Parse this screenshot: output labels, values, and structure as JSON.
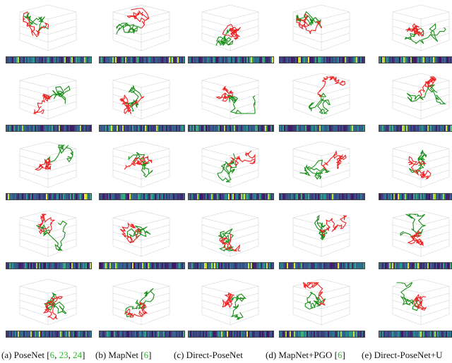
{
  "figure": {
    "colors": {
      "ground_truth": "#1a8f1a",
      "prediction": "#ee2222",
      "reference_link": "#22bb22"
    },
    "colormap": "viridis",
    "rows": 5,
    "captions": [
      {
        "label": "(a) PoseNet ",
        "refs": [
          "6",
          "23",
          "24"
        ]
      },
      {
        "label": "(b) MapNet ",
        "refs": [
          "6"
        ]
      },
      {
        "label": "(c) Direct-PoseNet",
        "refs": []
      },
      {
        "label": "(d) MapNet+PGO ",
        "refs": [
          "6"
        ]
      },
      {
        "label": "(e) Direct-PoseNet+U",
        "refs": []
      }
    ]
  }
}
